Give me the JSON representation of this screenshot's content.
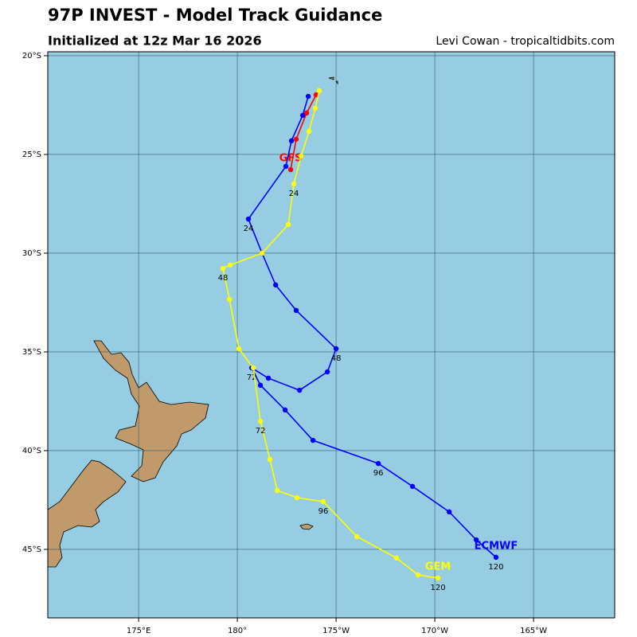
{
  "chart_data": {
    "type": "track-map",
    "title": "97P INVEST - Model Track Guidance",
    "subtitle": "Initialized at 12z Mar 16 2026",
    "credit": "Levi Cowan - tropicaltidbits.com",
    "xlim": [
      170.4,
      199.11
    ],
    "ylim": [
      -48.47,
      -19.8
    ],
    "xticks": [
      {
        "value": 175,
        "label": "175°E"
      },
      {
        "value": 180,
        "label": "180°"
      },
      {
        "value": 185,
        "label": "175°W"
      },
      {
        "value": 190,
        "label": "170°W"
      },
      {
        "value": 195,
        "label": "165°W"
      }
    ],
    "yticks": [
      {
        "value": -20,
        "label": "20°S"
      },
      {
        "value": -25,
        "label": "25°S"
      },
      {
        "value": -30,
        "label": "30°S"
      },
      {
        "value": -35,
        "label": "35°S"
      },
      {
        "value": -40,
        "label": "40°S"
      },
      {
        "value": -45,
        "label": "45°S"
      }
    ],
    "grid": true,
    "series": [
      {
        "name": "GFS",
        "color": "#ff0000",
        "lon": [
          183.99,
          183.51,
          182.98,
          182.7
        ],
        "lat": [
          -21.98,
          -22.9,
          -24.23,
          -25.77
        ],
        "hour_labels": []
      },
      {
        "name": "ECMWF",
        "color": "#0000ff",
        "lon": [
          183.59,
          183.31,
          182.74,
          182.46,
          180.56,
          181.25,
          181.94,
          182.98,
          185.0,
          184.56,
          183.15,
          181.57,
          180.73,
          181.17,
          182.42,
          183.83,
          187.14,
          188.87,
          190.73,
          192.1,
          193.1
        ],
        "lat": [
          -22.06,
          -23.02,
          -24.31,
          -25.6,
          -28.27,
          -30.0,
          -31.61,
          -32.9,
          -34.84,
          -36.01,
          -36.94,
          -36.33,
          -35.81,
          -36.69,
          -37.94,
          -39.48,
          -40.65,
          -41.81,
          -43.1,
          -44.52,
          -45.4
        ],
        "hour_labels": [
          "24",
          "48",
          "72",
          "96",
          "120"
        ]
      },
      {
        "name": "GEM",
        "color": "#ffff00",
        "lon": [
          184.15,
          183.95,
          183.63,
          183.23,
          182.86,
          182.58,
          181.25,
          179.64,
          179.27,
          179.6,
          180.08,
          180.81,
          181.17,
          181.65,
          182.02,
          183.02,
          184.35,
          186.05,
          188.06,
          189.15,
          190.16
        ],
        "lat": [
          -21.77,
          -22.66,
          -23.83,
          -25.08,
          -26.49,
          -28.55,
          -30.0,
          -30.6,
          -30.77,
          -32.34,
          -34.84,
          -35.81,
          -38.51,
          -40.44,
          -42.02,
          -42.38,
          -42.58,
          -44.35,
          -45.44,
          -46.29,
          -46.45
        ],
        "hour_labels": [
          "24",
          "48",
          "72",
          "96",
          "120"
        ]
      }
    ]
  }
}
